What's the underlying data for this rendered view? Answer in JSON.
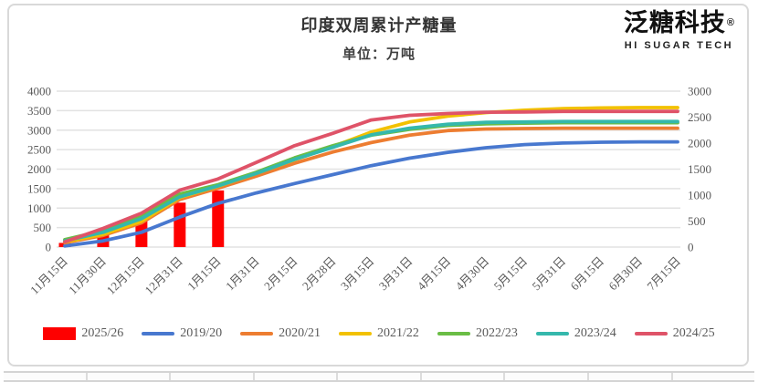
{
  "logo": {
    "brand": "泛糖科技",
    "registered": "®",
    "tagline": "HI SUGAR TECH"
  },
  "chart_data": {
    "type": "combo-bar-line",
    "title": "印度双周累计产糖量",
    "subtitle": "单位：万吨",
    "categories": [
      "11月15日",
      "11月30日",
      "12月15日",
      "12月31日",
      "1月15日",
      "1月31日",
      "2月15日",
      "2月28日",
      "3月15日",
      "3月31日",
      "4月15日",
      "4月30日",
      "5月15日",
      "5月31日",
      "6月15日",
      "6月30日",
      "7月15日"
    ],
    "left_axis": {
      "min": 0,
      "max": 4000,
      "step": 500,
      "ticks": [
        "0",
        "500",
        "1000",
        "1500",
        "2000",
        "2500",
        "3000",
        "3500",
        "4000"
      ]
    },
    "right_axis": {
      "min": 0,
      "max": 3000,
      "step": 500,
      "ticks": [
        "0",
        "500",
        "1000",
        "1500",
        "2000",
        "2500",
        "3000"
      ]
    },
    "grid": true,
    "legend_position": "bottom",
    "series": [
      {
        "name": "2025/26",
        "type": "bar",
        "axis": "right",
        "color": "#fe0000",
        "values": [
          80,
          285,
          500,
          855,
          1090
        ]
      },
      {
        "name": "2019/20",
        "type": "line",
        "axis": "left",
        "color": "#4878cf",
        "values": [
          30,
          160,
          380,
          770,
          1120,
          1390,
          1630,
          1860,
          2090,
          2280,
          2430,
          2550,
          2630,
          2670,
          2690,
          2700,
          2700
        ]
      },
      {
        "name": "2020/21",
        "type": "line",
        "axis": "left",
        "color": "#ed7d31",
        "values": [
          110,
          300,
          620,
          1220,
          1510,
          1820,
          2150,
          2440,
          2680,
          2870,
          2990,
          3030,
          3040,
          3050,
          3050,
          3050,
          3050
        ]
      },
      {
        "name": "2021/22",
        "type": "line",
        "axis": "left",
        "color": "#f2c100",
        "values": [
          130,
          330,
          660,
          1270,
          1560,
          1890,
          2240,
          2580,
          2950,
          3210,
          3360,
          3450,
          3510,
          3550,
          3570,
          3580,
          3580
        ]
      },
      {
        "name": "2022/23",
        "type": "line",
        "axis": "left",
        "color": "#6abd45",
        "values": [
          190,
          420,
          780,
          1360,
          1600,
          1920,
          2290,
          2600,
          2870,
          3020,
          3120,
          3160,
          3180,
          3190,
          3190,
          3190,
          3190
        ]
      },
      {
        "name": "2023/24",
        "type": "line",
        "axis": "left",
        "color": "#35b8ac",
        "values": [
          160,
          380,
          730,
          1290,
          1570,
          1890,
          2250,
          2560,
          2880,
          3050,
          3150,
          3200,
          3210,
          3220,
          3220,
          3220,
          3220
        ]
      },
      {
        "name": "2024/25",
        "type": "line",
        "axis": "right",
        "color": "#df5368",
        "values": [
          100,
          360,
          650,
          1095,
          1310,
          1630,
          1950,
          2190,
          2445,
          2535,
          2570,
          2595,
          2600,
          2610,
          2610,
          2610,
          2610
        ]
      }
    ]
  }
}
